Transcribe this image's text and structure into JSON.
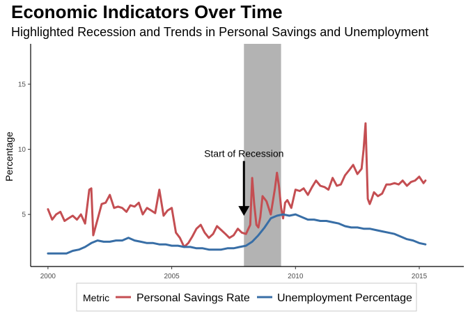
{
  "chart_data": {
    "type": "line",
    "title": "Economic Indicators Over Time",
    "subtitle": "Highlighted Recession and Trends in Personal Savings and Unemployment",
    "ylabel": "Percentage",
    "xlabel": "",
    "xlim": [
      1999.3,
      2016.8
    ],
    "ylim": [
      1.0,
      18.1
    ],
    "x_ticks": [
      2000,
      2005,
      2010,
      2015
    ],
    "y_ticks": [
      5,
      10,
      15
    ],
    "grid": false,
    "legend_position": "bottom",
    "legend_title": "Metric",
    "recession": {
      "start": 2007.917,
      "end": 2009.417
    },
    "annotation": {
      "text": "Start of Recession",
      "x": 2007.917,
      "arrow_from_y": 9.1,
      "arrow_to_y": 5.0
    },
    "series": [
      {
        "name": "Personal Savings Rate",
        "color": "#c44e52",
        "x": [
          2000.0,
          2000.17,
          2000.33,
          2000.5,
          2000.67,
          2000.83,
          2001.0,
          2001.17,
          2001.33,
          2001.5,
          2001.67,
          2001.75,
          2001.83,
          2002.0,
          2002.17,
          2002.33,
          2002.5,
          2002.67,
          2002.83,
          2003.0,
          2003.17,
          2003.33,
          2003.5,
          2003.67,
          2003.83,
          2004.0,
          2004.17,
          2004.33,
          2004.5,
          2004.67,
          2004.83,
          2005.0,
          2005.17,
          2005.33,
          2005.5,
          2005.67,
          2005.83,
          2006.0,
          2006.17,
          2006.33,
          2006.5,
          2006.67,
          2006.83,
          2007.0,
          2007.17,
          2007.33,
          2007.5,
          2007.67,
          2007.83,
          2008.0,
          2008.17,
          2008.25,
          2008.33,
          2008.42,
          2008.5,
          2008.58,
          2008.67,
          2008.83,
          2009.0,
          2009.17,
          2009.25,
          2009.33,
          2009.42,
          2009.5,
          2009.58,
          2009.67,
          2009.83,
          2010.0,
          2010.17,
          2010.33,
          2010.5,
          2010.67,
          2010.83,
          2011.0,
          2011.17,
          2011.33,
          2011.5,
          2011.67,
          2011.83,
          2012.0,
          2012.17,
          2012.33,
          2012.5,
          2012.67,
          2012.75,
          2012.83,
          2012.92,
          2013.0,
          2013.08,
          2013.17,
          2013.33,
          2013.5,
          2013.67,
          2013.83,
          2014.0,
          2014.17,
          2014.33,
          2014.5,
          2014.67,
          2014.83,
          2015.0,
          2015.17,
          2015.25
        ],
        "values": [
          5.4,
          4.6,
          5.0,
          5.2,
          4.5,
          4.7,
          4.9,
          4.6,
          5.0,
          4.3,
          6.9,
          7.0,
          3.4,
          4.6,
          5.8,
          5.9,
          6.5,
          5.5,
          5.6,
          5.5,
          5.2,
          5.7,
          5.6,
          5.9,
          5.0,
          5.5,
          5.3,
          5.1,
          6.9,
          4.9,
          5.3,
          5.5,
          3.6,
          3.2,
          2.5,
          2.8,
          3.3,
          3.9,
          4.2,
          3.6,
          3.2,
          3.5,
          4.1,
          3.8,
          3.5,
          3.2,
          3.4,
          3.9,
          3.6,
          3.5,
          4.2,
          7.8,
          5.8,
          4.2,
          4.0,
          4.8,
          6.4,
          6.0,
          5.0,
          7.0,
          8.2,
          7.2,
          5.5,
          4.7,
          5.9,
          6.1,
          5.5,
          6.9,
          6.8,
          7.0,
          6.5,
          7.1,
          7.6,
          7.2,
          7.1,
          6.9,
          7.8,
          7.2,
          7.3,
          8.0,
          8.4,
          8.8,
          8.1,
          8.5,
          10.0,
          12.0,
          6.2,
          5.8,
          6.2,
          6.7,
          6.4,
          6.6,
          7.3,
          7.3,
          7.4,
          7.3,
          7.6,
          7.2,
          7.5,
          7.6,
          7.9,
          7.4,
          7.6
        ]
      },
      {
        "name": "Unemployment Percentage",
        "color": "#386ea6",
        "x": [
          2000.0,
          2000.25,
          2000.5,
          2000.75,
          2001.0,
          2001.25,
          2001.5,
          2001.75,
          2002.0,
          2002.25,
          2002.5,
          2002.75,
          2003.0,
          2003.25,
          2003.5,
          2003.75,
          2004.0,
          2004.25,
          2004.5,
          2004.75,
          2005.0,
          2005.25,
          2005.5,
          2005.75,
          2006.0,
          2006.25,
          2006.5,
          2006.75,
          2007.0,
          2007.25,
          2007.5,
          2007.75,
          2008.0,
          2008.25,
          2008.5,
          2008.75,
          2009.0,
          2009.25,
          2009.5,
          2009.75,
          2010.0,
          2010.25,
          2010.5,
          2010.75,
          2011.0,
          2011.25,
          2011.5,
          2011.75,
          2012.0,
          2012.25,
          2012.5,
          2012.75,
          2013.0,
          2013.25,
          2013.5,
          2013.75,
          2014.0,
          2014.25,
          2014.5,
          2014.75,
          2015.0,
          2015.25
        ],
        "values": [
          2.0,
          2.0,
          2.0,
          2.0,
          2.2,
          2.3,
          2.5,
          2.8,
          3.0,
          2.9,
          2.9,
          3.0,
          3.0,
          3.2,
          3.0,
          2.9,
          2.8,
          2.8,
          2.7,
          2.7,
          2.6,
          2.6,
          2.5,
          2.5,
          2.4,
          2.4,
          2.3,
          2.3,
          2.3,
          2.4,
          2.4,
          2.5,
          2.6,
          2.9,
          3.4,
          4.0,
          4.7,
          4.9,
          5.0,
          4.9,
          5.0,
          4.8,
          4.6,
          4.6,
          4.5,
          4.5,
          4.4,
          4.3,
          4.1,
          4.0,
          4.0,
          3.9,
          3.9,
          3.8,
          3.7,
          3.6,
          3.5,
          3.3,
          3.1,
          3.0,
          2.8,
          2.7
        ]
      }
    ]
  }
}
